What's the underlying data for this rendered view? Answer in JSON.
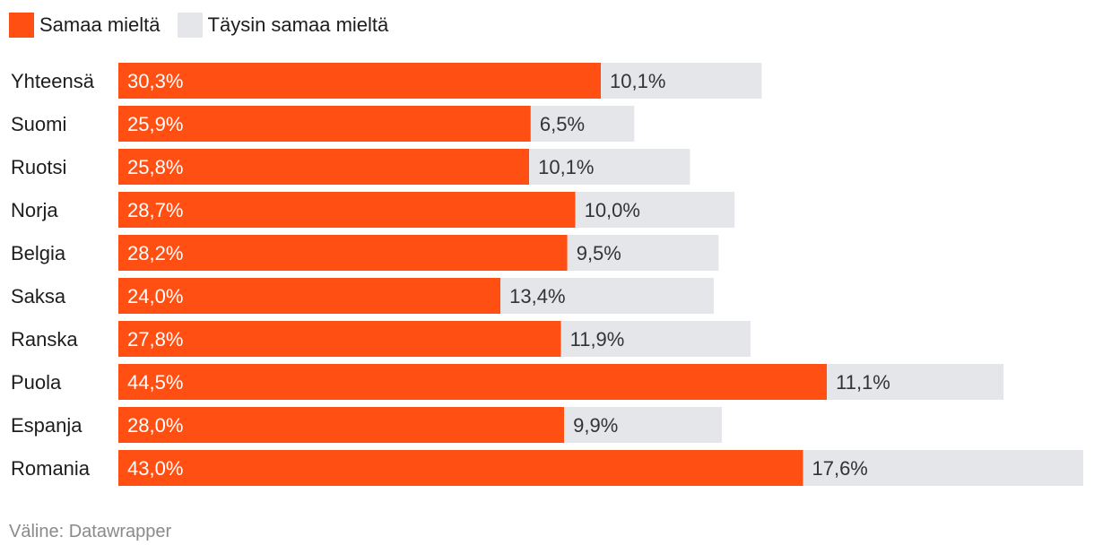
{
  "colors": {
    "samaa": "#ff4f12",
    "taysin": "#e5e6ea"
  },
  "legend": [
    {
      "label": "Samaa mieltä",
      "color_key": "samaa"
    },
    {
      "label": "Täysin samaa mieltä",
      "color_key": "taysin"
    }
  ],
  "chart_data": {
    "type": "bar",
    "orientation": "horizontal",
    "stacked": true,
    "categories": [
      "Yhteensä",
      "Suomi",
      "Ruotsi",
      "Norja",
      "Belgia",
      "Saksa",
      "Ranska",
      "Puola",
      "Espanja",
      "Romania"
    ],
    "series": [
      {
        "name": "Samaa mieltä",
        "values": [
          30.3,
          25.9,
          25.8,
          28.7,
          28.2,
          24.0,
          27.8,
          44.5,
          28.0,
          43.0
        ],
        "labels": [
          "30,3%",
          "25,9%",
          "25,8%",
          "28,7%",
          "28,2%",
          "24,0%",
          "27,8%",
          "44,5%",
          "28,0%",
          "43,0%"
        ]
      },
      {
        "name": "Täysin samaa mieltä",
        "values": [
          10.1,
          6.5,
          10.1,
          10.0,
          9.5,
          13.4,
          11.9,
          11.1,
          9.9,
          17.6
        ],
        "labels": [
          "10,1%",
          "6,5%",
          "10,1%",
          "10,0%",
          "9,5%",
          "13,4%",
          "11,9%",
          "11,1%",
          "9,9%",
          "17,6%"
        ]
      }
    ],
    "xlim": [
      0,
      60.6
    ],
    "grid": false
  },
  "source": "Väline: Datawrapper"
}
